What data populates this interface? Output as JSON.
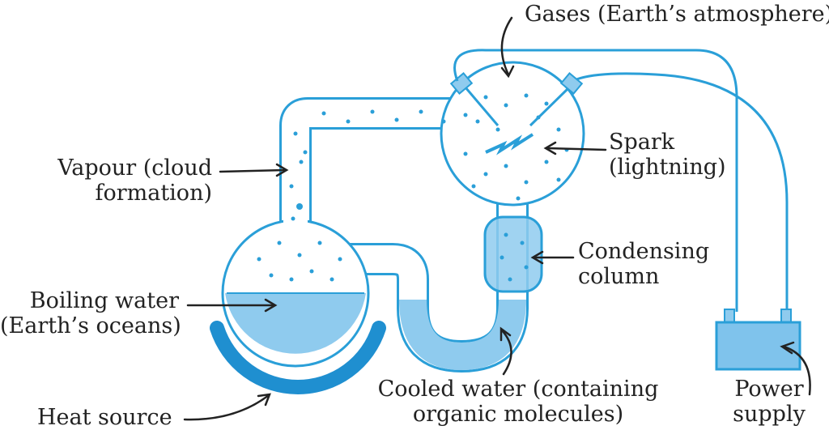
{
  "labels": {
    "gases": "Gases (Earth’s atmosphere)",
    "vapour_line1": "Vapour (cloud",
    "vapour_line2": "formation)",
    "spark_line1": "Spark",
    "spark_line2": "(lightning)",
    "condensing_line1": "Condensing",
    "condensing_line2": "column",
    "boiling_line1": "Boiling water",
    "boiling_line2": "(Earth’s oceans)",
    "cooled_line1": "Cooled water (containing",
    "cooled_line2": "organic molecules)",
    "heat_source": "Heat source",
    "power_line1": "Power",
    "power_line2": "supply"
  },
  "colors": {
    "outline": "#2a9fd8",
    "water": "#8fcbee",
    "dots": "#2a9fd8",
    "heat_source": "#1f8fd0",
    "text": "#222222"
  }
}
